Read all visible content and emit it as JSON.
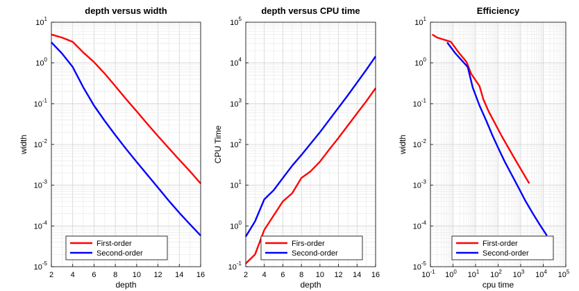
{
  "chart_data": [
    {
      "type": "line",
      "title": "depth versus width",
      "xlabel": "depth",
      "ylabel": "width",
      "xscale": "linear",
      "yscale": "log",
      "xlim": [
        2,
        16
      ],
      "ylim": [
        1e-05,
        10
      ],
      "xticks": [
        "2",
        "4",
        "6",
        "8",
        "10",
        "12",
        "14",
        "16"
      ],
      "yticks": [
        {
          "base": "10",
          "exp": "-5"
        },
        {
          "base": "10",
          "exp": "-4"
        },
        {
          "base": "10",
          "exp": "-3"
        },
        {
          "base": "10",
          "exp": "-2"
        },
        {
          "base": "10",
          "exp": "-1"
        },
        {
          "base": "10",
          "exp": "0"
        },
        {
          "base": "10",
          "exp": "1"
        }
      ],
      "grid": true,
      "legend_position": "bottom-left",
      "series": [
        {
          "name": "First-order",
          "color": "#ff0000",
          "x": [
            2,
            3,
            4,
            5,
            6,
            7,
            8,
            9,
            10,
            11,
            12,
            13,
            14,
            15,
            16
          ],
          "y": [
            5.0,
            4.2,
            3.3,
            1.8,
            1.05,
            0.55,
            0.27,
            0.13,
            0.065,
            0.032,
            0.016,
            0.0082,
            0.0042,
            0.0022,
            0.0011
          ]
        },
        {
          "name": "Second-order",
          "color": "#0000ff",
          "x": [
            2,
            3,
            4,
            5,
            6,
            7,
            8,
            9,
            10,
            11,
            12,
            13,
            14,
            15,
            16
          ],
          "y": [
            3.2,
            1.7,
            0.8,
            0.25,
            0.09,
            0.038,
            0.017,
            0.0078,
            0.0037,
            0.0018,
            0.00087,
            0.00042,
            0.00021,
            0.00011,
            5.8e-05
          ]
        }
      ]
    },
    {
      "type": "line",
      "title": "depth versus CPU time",
      "xlabel": "depth",
      "ylabel": "CPU Time",
      "xscale": "linear",
      "yscale": "log",
      "xlim": [
        2,
        16
      ],
      "ylim": [
        0.1,
        100000
      ],
      "xticks": [
        "2",
        "4",
        "6",
        "8",
        "10",
        "12",
        "14",
        "16"
      ],
      "yticks": [
        {
          "base": "10",
          "exp": "-1"
        },
        {
          "base": "10",
          "exp": "0"
        },
        {
          "base": "10",
          "exp": "1"
        },
        {
          "base": "10",
          "exp": "2"
        },
        {
          "base": "10",
          "exp": "3"
        },
        {
          "base": "10",
          "exp": "4"
        },
        {
          "base": "10",
          "exp": "5"
        }
      ],
      "grid": true,
      "legend_position": "bottom-right",
      "series": [
        {
          "name": "Firs-order",
          "color": "#ff0000",
          "x": [
            2,
            3,
            4,
            5,
            6,
            7,
            8,
            9,
            10,
            11,
            12,
            13,
            14,
            15,
            16
          ],
          "y": [
            0.12,
            0.2,
            0.8,
            1.8,
            4.0,
            6.3,
            15,
            22,
            38,
            75,
            145,
            290,
            580,
            1150,
            2400
          ]
        },
        {
          "name": "Second-order",
          "color": "#0000ff",
          "x": [
            2,
            3,
            4,
            5,
            6,
            7,
            8,
            9,
            10,
            11,
            12,
            13,
            14,
            15,
            16
          ],
          "y": [
            0.55,
            1.3,
            4.5,
            7.5,
            15,
            30,
            55,
            105,
            200,
            400,
            800,
            1600,
            3300,
            6800,
            14500
          ]
        }
      ]
    },
    {
      "type": "line",
      "title": "Efficiency",
      "xlabel": "cpu time",
      "ylabel": "width",
      "xscale": "log",
      "yscale": "log",
      "xlim": [
        0.1,
        100000
      ],
      "ylim": [
        1e-05,
        10
      ],
      "xticks": [
        {
          "base": "10",
          "exp": "-1"
        },
        {
          "base": "10",
          "exp": "0"
        },
        {
          "base": "10",
          "exp": "1"
        },
        {
          "base": "10",
          "exp": "2"
        },
        {
          "base": "10",
          "exp": "3"
        },
        {
          "base": "10",
          "exp": "4"
        },
        {
          "base": "10",
          "exp": "5"
        }
      ],
      "yticks": [
        {
          "base": "10",
          "exp": "-5"
        },
        {
          "base": "10",
          "exp": "-4"
        },
        {
          "base": "10",
          "exp": "-3"
        },
        {
          "base": "10",
          "exp": "-2"
        },
        {
          "base": "10",
          "exp": "-1"
        },
        {
          "base": "10",
          "exp": "0"
        },
        {
          "base": "10",
          "exp": "1"
        }
      ],
      "grid": true,
      "legend_position": "bottom-left",
      "series": [
        {
          "name": "First-order",
          "color": "#ff0000",
          "x": [
            0.12,
            0.2,
            0.8,
            1.8,
            4.0,
            6.3,
            15,
            22,
            38,
            75,
            145,
            290,
            580,
            1150,
            2400
          ],
          "y": [
            5.0,
            4.2,
            3.3,
            1.8,
            1.05,
            0.55,
            0.27,
            0.13,
            0.065,
            0.032,
            0.016,
            0.0082,
            0.0042,
            0.0022,
            0.0011
          ]
        },
        {
          "name": "Second-order",
          "color": "#0000ff",
          "x": [
            0.55,
            1.3,
            4.5,
            7.5,
            15,
            30,
            55,
            105,
            200,
            400,
            800,
            1600,
            3300,
            6800,
            14500
          ],
          "y": [
            3.2,
            1.7,
            0.8,
            0.25,
            0.09,
            0.038,
            0.017,
            0.0078,
            0.0037,
            0.0018,
            0.00087,
            0.00042,
            0.00021,
            0.00011,
            5.8e-05
          ]
        }
      ]
    }
  ]
}
